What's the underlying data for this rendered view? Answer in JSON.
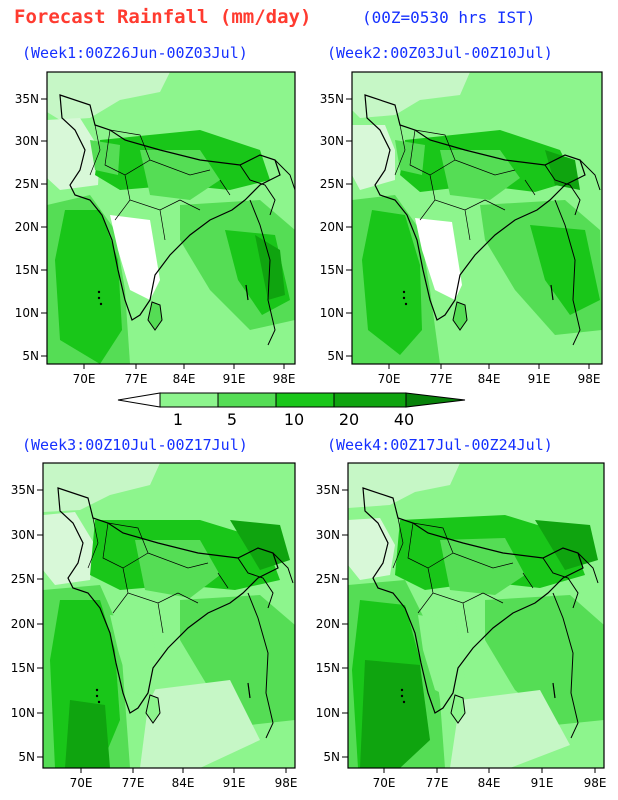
{
  "title": "Forecast Rainfall (mm/day)",
  "time_note": "(00Z=0530 hrs IST)",
  "panels": [
    {
      "label": "(Week1:00Z26Jun-00Z03Jul)"
    },
    {
      "label": "(Week2:00Z03Jul-00Z10Jul)"
    },
    {
      "label": "(Week3:00Z10Jul-00Z17Jul)"
    },
    {
      "label": "(Week4:00Z17Jul-00Z24Jul)"
    }
  ],
  "lat_ticks": [
    "35N",
    "30N",
    "25N",
    "20N",
    "15N",
    "10N",
    "5N"
  ],
  "lon_ticks": [
    "70E",
    "77E",
    "84E",
    "91E",
    "98E"
  ],
  "legend": {
    "breaks": [
      "1",
      "5",
      "10",
      "20",
      "40"
    ],
    "colors": [
      "#ffffff",
      "#8df58d",
      "#55dd55",
      "#19c619",
      "#0fa40f",
      "#08820a"
    ]
  },
  "colors": {
    "title": "#ff3b30",
    "subtitle": "#1530ff",
    "land_outline": "#000000"
  }
}
